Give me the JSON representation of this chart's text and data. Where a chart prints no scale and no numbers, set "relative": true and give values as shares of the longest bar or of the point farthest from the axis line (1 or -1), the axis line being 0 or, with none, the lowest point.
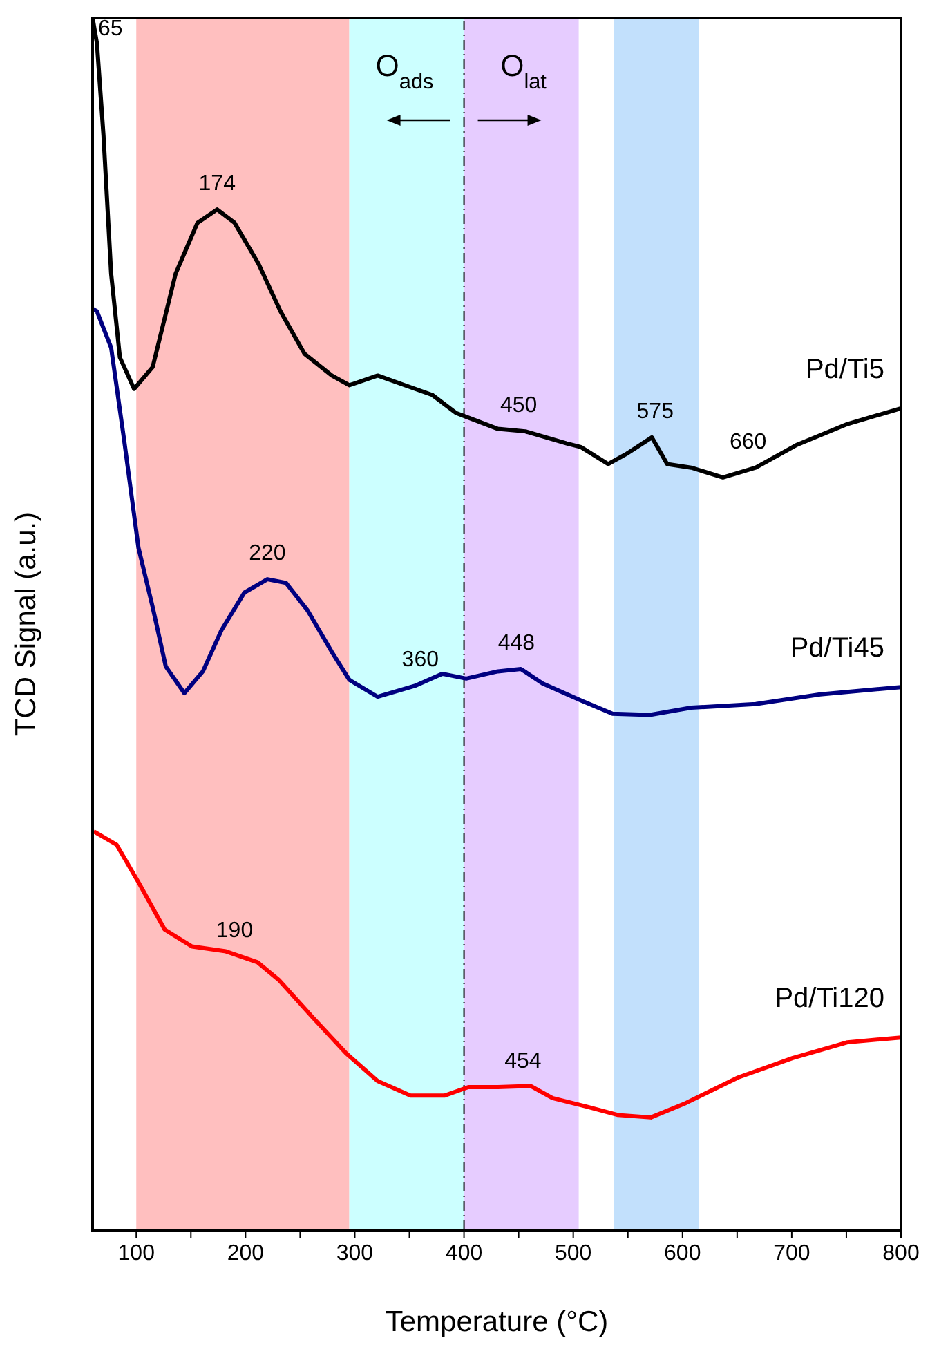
{
  "chart_data": {
    "type": "line",
    "relative": true,
    "xlabel": "Temperature (°C)",
    "ylabel": "TCD Signal (a.u.)",
    "xlim": [
      60,
      800
    ],
    "xticks": [
      100,
      {
        "value": 150,
        "label": null
      },
      200,
      {
        "value": 250,
        "label": null
      },
      300,
      {
        "value": 350,
        "label": null
      },
      400,
      {
        "value": 450,
        "label": null
      },
      500,
      {
        "value": 550,
        "label": null
      },
      600,
      {
        "value": 650,
        "label": null
      },
      700,
      {
        "value": 750,
        "label": null
      },
      800
    ],
    "grid": false,
    "legend": false,
    "marker": "none",
    "line_style": "solid",
    "series": [
      {
        "name": "Pd/Ti5",
        "color": "#000000",
        "x": [
          60,
          64,
          70,
          77,
          85,
          98,
          115,
          136,
          156,
          174,
          190,
          212,
          232,
          254,
          279,
          295,
          321,
          346,
          371,
          393,
          402,
          431,
          456,
          494,
          507,
          532,
          548,
          572,
          586,
          608,
          637,
          667,
          705,
          751,
          800
        ],
        "values": [
          1.0,
          0.979,
          0.903,
          0.789,
          0.72,
          0.694,
          0.712,
          0.789,
          0.831,
          0.842,
          0.831,
          0.797,
          0.758,
          0.723,
          0.705,
          0.697,
          0.705,
          0.697,
          0.689,
          0.674,
          0.671,
          0.661,
          0.659,
          0.649,
          0.646,
          0.632,
          0.64,
          0.654,
          0.632,
          0.629,
          0.621,
          0.629,
          0.648,
          0.665,
          0.678
        ]
      },
      {
        "name": "Pd/Ti45",
        "color": "#000080",
        "x": [
          60,
          64,
          77,
          89,
          102,
          115,
          127,
          144,
          161,
          178,
          199,
          220,
          237,
          257,
          279,
          295,
          321,
          355,
          380,
          402,
          431,
          452,
          472,
          507,
          536,
          570,
          608,
          667,
          726,
          800
        ],
        "values": [
          0.76,
          0.758,
          0.728,
          0.651,
          0.563,
          0.514,
          0.465,
          0.443,
          0.461,
          0.495,
          0.526,
          0.537,
          0.534,
          0.511,
          0.477,
          0.454,
          0.44,
          0.449,
          0.459,
          0.455,
          0.461,
          0.463,
          0.451,
          0.437,
          0.426,
          0.425,
          0.431,
          0.434,
          0.442,
          0.448
        ]
      },
      {
        "name": "Pd/Ti120",
        "color": "#ff0000",
        "x": [
          61,
          82,
          102,
          126,
          151,
          182,
          211,
          231,
          261,
          292,
          321,
          351,
          382,
          404,
          431,
          461,
          481,
          512,
          541,
          571,
          601,
          651,
          701,
          751,
          800
        ],
        "values": [
          0.329,
          0.318,
          0.287,
          0.248,
          0.234,
          0.23,
          0.221,
          0.206,
          0.176,
          0.146,
          0.123,
          0.111,
          0.111,
          0.118,
          0.118,
          0.119,
          0.109,
          0.102,
          0.095,
          0.093,
          0.104,
          0.126,
          0.142,
          0.155,
          0.159
        ]
      }
    ],
    "bands": [
      {
        "axis": "x",
        "from": 100,
        "to": 295,
        "color": "#ffbfbf"
      },
      {
        "axis": "x",
        "from": 295,
        "to": 400,
        "color": "#ccffff"
      },
      {
        "axis": "x",
        "from": 400,
        "to": 505,
        "color": "#e6ccff"
      },
      {
        "axis": "x",
        "from": 537,
        "to": 615,
        "color": "#c2e0fc"
      }
    ],
    "ref_lines": [
      {
        "axis": "x",
        "value": 400,
        "color": "#000000",
        "line_style": "dashdot"
      }
    ],
    "annotations": [
      "O$_{ads}$",
      "O$_{lat}$",
      {
        "text": "65",
        "x": 65,
        "y": 0.97
      },
      {
        "text": "174",
        "x": 174,
        "y": 0.842
      },
      {
        "text": "450",
        "x": 450,
        "y": 0.659
      },
      {
        "text": "575",
        "x": 575,
        "y": 0.654
      },
      {
        "text": "660",
        "x": 660,
        "y": 0.629
      },
      {
        "text": "220",
        "x": 220,
        "y": 0.537
      },
      {
        "text": "360",
        "x": 360,
        "y": 0.449
      },
      {
        "text": "448",
        "x": 448,
        "y": 0.463
      },
      {
        "text": "190",
        "x": 190,
        "y": 0.226
      },
      {
        "text": "454",
        "x": 454,
        "y": 0.118
      }
    ]
  }
}
